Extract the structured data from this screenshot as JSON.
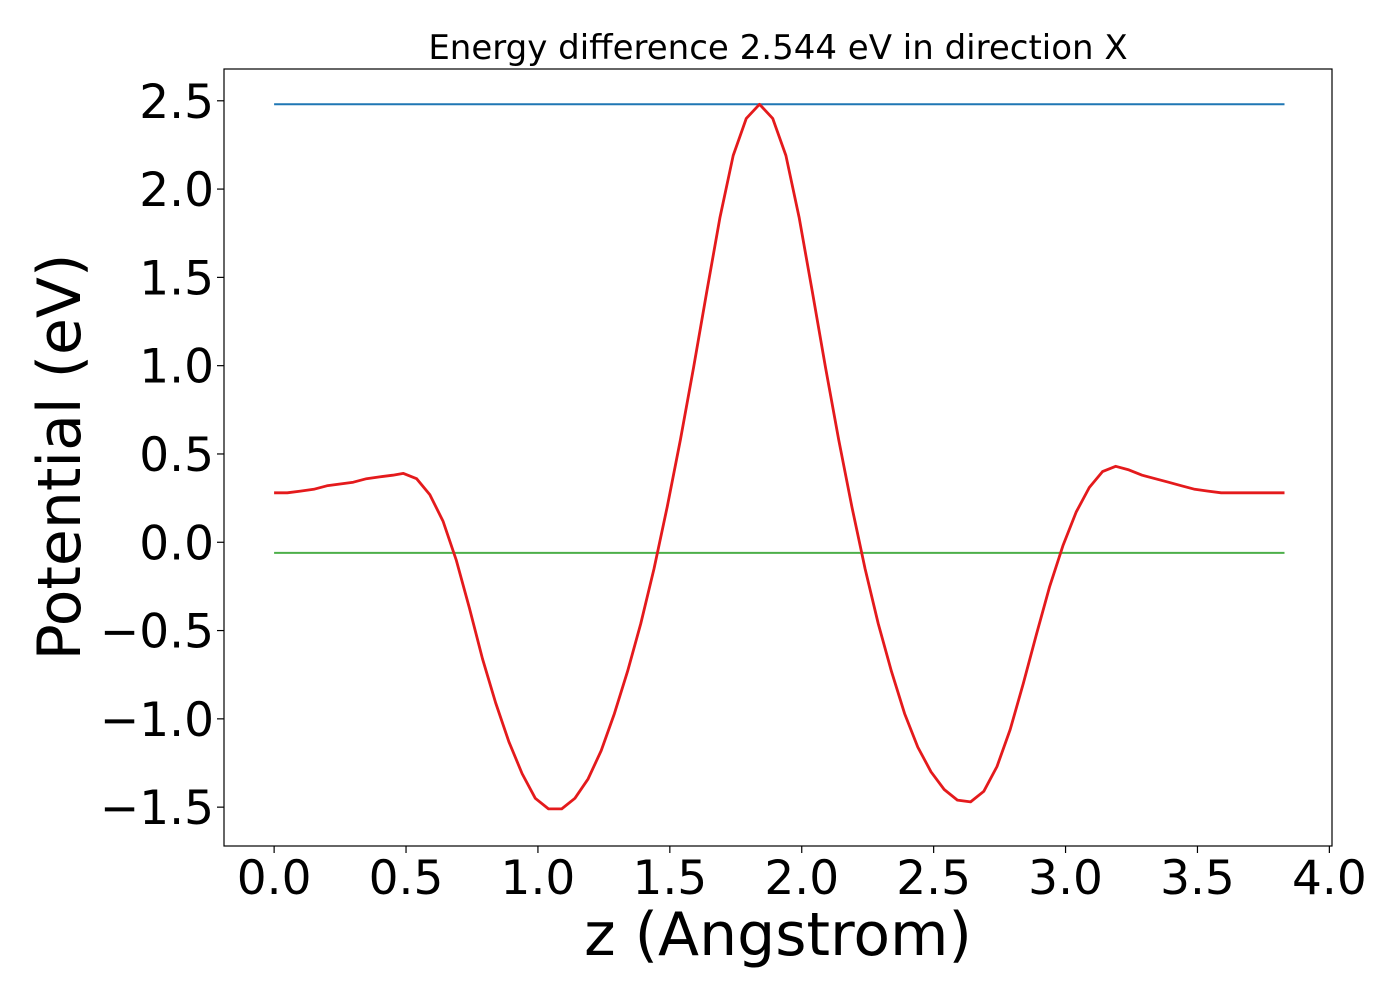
{
  "chart_data": {
    "type": "line",
    "title": "Energy difference 2.544 eV in direction X",
    "xlabel": "z (Angstrom)",
    "ylabel": "Potential (eV)",
    "xlim": [
      -0.19,
      4.01
    ],
    "ylim": [
      -1.72,
      2.68
    ],
    "grid": false,
    "legend": "none",
    "x_ticks": [
      0.0,
      0.5,
      1.0,
      1.5,
      2.0,
      2.5,
      3.0,
      3.5,
      4.0
    ],
    "x_tick_labels": [
      "0.0",
      "0.5",
      "1.0",
      "1.5",
      "2.0",
      "2.5",
      "3.0",
      "3.5",
      "4.0"
    ],
    "y_ticks": [
      -1.5,
      -1.0,
      -0.5,
      0.0,
      0.5,
      1.0,
      1.5,
      2.0,
      2.5
    ],
    "y_tick_labels": [
      "−1.5",
      "−1.0",
      "−0.5",
      "0.0",
      "0.5",
      "1.0",
      "1.5",
      "2.0",
      "2.5"
    ],
    "series": [
      {
        "color": "#e41a1c",
        "x": [
          0.0,
          0.05,
          0.1,
          0.15,
          0.2,
          0.25,
          0.3,
          0.35,
          0.4,
          0.45,
          0.49,
          0.54,
          0.59,
          0.64,
          0.69,
          0.74,
          0.79,
          0.84,
          0.89,
          0.94,
          0.99,
          1.04,
          1.09,
          1.14,
          1.19,
          1.24,
          1.29,
          1.34,
          1.39,
          1.44,
          1.49,
          1.54,
          1.59,
          1.64,
          1.69,
          1.74,
          1.79,
          1.84,
          1.89,
          1.94,
          1.99,
          2.04,
          2.09,
          2.14,
          2.19,
          2.24,
          2.29,
          2.34,
          2.39,
          2.44,
          2.49,
          2.54,
          2.59,
          2.64,
          2.69,
          2.74,
          2.79,
          2.84,
          2.89,
          2.94,
          2.99,
          3.04,
          3.09,
          3.14,
          3.19,
          3.24,
          3.29,
          3.34,
          3.39,
          3.44,
          3.49,
          3.54,
          3.59,
          3.64,
          3.69,
          3.74,
          3.79,
          3.83
        ],
        "y": [
          0.28,
          0.28,
          0.29,
          0.3,
          0.32,
          0.33,
          0.34,
          0.36,
          0.37,
          0.38,
          0.39,
          0.36,
          0.27,
          0.12,
          -0.1,
          -0.37,
          -0.66,
          -0.91,
          -1.13,
          -1.31,
          -1.45,
          -1.51,
          -1.51,
          -1.45,
          -1.34,
          -1.18,
          -0.97,
          -0.73,
          -0.46,
          -0.15,
          0.2,
          0.58,
          0.99,
          1.42,
          1.84,
          2.19,
          2.4,
          2.48,
          2.4,
          2.19,
          1.84,
          1.42,
          0.99,
          0.58,
          0.2,
          -0.15,
          -0.46,
          -0.73,
          -0.97,
          -1.16,
          -1.3,
          -1.4,
          -1.46,
          -1.47,
          -1.41,
          -1.27,
          -1.06,
          -0.8,
          -0.52,
          -0.25,
          -0.02,
          0.17,
          0.31,
          0.4,
          0.43,
          0.41,
          0.38,
          0.36,
          0.34,
          0.32,
          0.3,
          0.29,
          0.28,
          0.28,
          0.28,
          0.28,
          0.28,
          0.28
        ]
      },
      {
        "color": "#1f77b4",
        "x": [
          0.0,
          3.83
        ],
        "y": [
          2.48,
          2.48
        ]
      },
      {
        "color": "#4daf4a",
        "x": [
          0.0,
          3.83
        ],
        "y": [
          -0.06,
          -0.06
        ]
      }
    ]
  }
}
